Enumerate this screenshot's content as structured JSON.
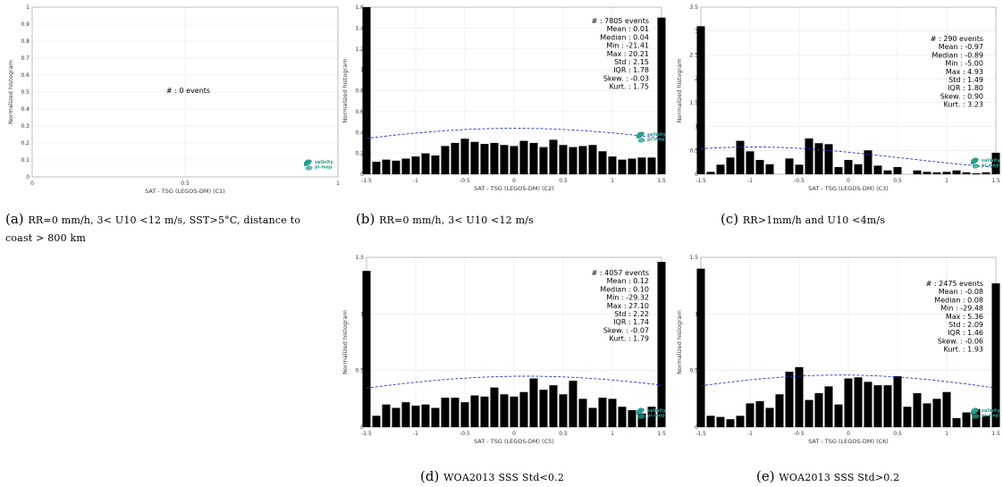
{
  "colors": {
    "bar": "#000000",
    "fit": "#2233cc",
    "grid": "#e8e8e8",
    "logo": "#2a9d8f"
  },
  "panels": [
    {
      "id": "a",
      "caption": {
        "letter": "(a)",
        "text": "RR=0 mm/h, 3< U10 <12 m/s, SST>5°C, distance to coast > 800 km"
      },
      "stats": [
        "# : 0 events"
      ],
      "logo_text": [
        "salinity",
        "pi-mep"
      ],
      "chart_data": {
        "type": "bar",
        "xlabel": "SAT - TSG (LEGOS-DM) (C1)",
        "ylabel": "Normalized histogram",
        "xlim": [
          0,
          1
        ],
        "ylim": [
          0,
          1
        ],
        "xticks": [
          "0",
          "0.5",
          "1"
        ],
        "yticks": [
          "0",
          "0.1",
          "0.2",
          "0.3",
          "0.4",
          "0.5",
          "0.6",
          "0.7",
          "0.8",
          "0.9",
          "1"
        ],
        "bins": [],
        "values": [],
        "fit": null,
        "grid": true
      }
    },
    {
      "id": "b",
      "caption": {
        "letter": "(b)",
        "text": "RR=0 mm/h, 3< U10 <12 m/s"
      },
      "stats": [
        "# : 7805 events",
        "Mean : 0.01",
        "Median : 0.04",
        "Min : -21.41",
        "Max : 20.21",
        "Std : 2.15",
        "IQR : 1.78",
        "Skew. : -0.03",
        "Kurt. : 1.75"
      ],
      "logo_text": [
        "salinity",
        "pi-mep"
      ],
      "chart_data": {
        "type": "bar",
        "xlabel": "SAT - TSG (LEGOS-DM) (C2)",
        "ylabel": "Normalized histogram",
        "xlim": [
          -1.5,
          1.5
        ],
        "ylim": [
          0,
          1.6
        ],
        "xticks": [
          "-1.5",
          "-1",
          "-0.5",
          "0",
          "0.5",
          "1",
          "1.5"
        ],
        "yticks": [
          "0",
          "0.2",
          "0.4",
          "0.6",
          "0.8",
          "1",
          "1.2",
          "1.4",
          "1.6"
        ],
        "bins": [
          -1.5,
          -1.4,
          -1.3,
          -1.2,
          -1.1,
          -1.0,
          -0.9,
          -0.8,
          -0.7,
          -0.6,
          -0.5,
          -0.4,
          -0.3,
          -0.2,
          -0.1,
          0.0,
          0.1,
          0.2,
          0.3,
          0.4,
          0.5,
          0.6,
          0.7,
          0.8,
          0.9,
          1.0,
          1.1,
          1.2,
          1.3,
          1.4,
          1.5
        ],
        "values": [
          1.6,
          0.12,
          0.14,
          0.13,
          0.15,
          0.17,
          0.2,
          0.18,
          0.27,
          0.3,
          0.34,
          0.31,
          0.29,
          0.3,
          0.28,
          0.27,
          0.32,
          0.3,
          0.26,
          0.33,
          0.28,
          0.26,
          0.27,
          0.28,
          0.22,
          0.17,
          0.14,
          0.15,
          0.16,
          0.16,
          1.5
        ],
        "fit": {
          "mean": 0.01,
          "std": 2.15,
          "peak": 0.44
        },
        "grid": true
      }
    },
    {
      "id": "c",
      "caption": {
        "letter": "(c)",
        "text": "RR>1mm/h and U10 <4m/s"
      },
      "stats": [
        "# : 290 events",
        "Mean : -0.97",
        "Median : -0.89",
        "Min : -5.00",
        "Max : 4.93",
        "Std : 1.49",
        "IQR : 1.80",
        "Skew. : 0.90",
        "Kurt. : 3.23"
      ],
      "logo_text": [
        "salinity",
        "pi-mep"
      ],
      "chart_data": {
        "type": "bar",
        "xlabel": "SAT - TSG (LEGOS-DM) (C3)",
        "ylabel": "Normalized histogram",
        "xlim": [
          -1.5,
          1.5
        ],
        "ylim": [
          0,
          3.5
        ],
        "xticks": [
          "-1.5",
          "-1",
          "-0.5",
          "0",
          "0.5",
          "1",
          "1.5"
        ],
        "yticks": [
          "0",
          "0.5",
          "1",
          "1.5",
          "2",
          "2.5",
          "3",
          "3.5"
        ],
        "bins": [
          -1.5,
          -1.4,
          -1.3,
          -1.2,
          -1.1,
          -1.0,
          -0.9,
          -0.8,
          -0.7,
          -0.6,
          -0.5,
          -0.4,
          -0.3,
          -0.2,
          -0.1,
          0.0,
          0.1,
          0.2,
          0.3,
          0.4,
          0.5,
          0.6,
          0.7,
          0.8,
          0.9,
          1.0,
          1.1,
          1.2,
          1.3,
          1.4,
          1.5
        ],
        "values": [
          3.1,
          0.05,
          0.2,
          0.35,
          0.7,
          0.48,
          0.3,
          0.21,
          0,
          0.33,
          0.2,
          0.75,
          0.65,
          0.63,
          0.15,
          0.3,
          0.21,
          0.5,
          0.18,
          0.08,
          0.15,
          0,
          0.08,
          0.05,
          0.04,
          0.05,
          0.08,
          0.04,
          0.02,
          0.04,
          0.45
        ],
        "fit": {
          "mean": -0.97,
          "std": 1.49,
          "peak": 0.57
        },
        "grid": true
      }
    },
    {
      "id": "d",
      "caption": {
        "letter": "(d)",
        "text": "WOA2013 SSS Std<0.2"
      },
      "stats": [
        "# : 4057 events",
        "Mean : 0.12",
        "Median : 0.10",
        "Min : -29.32",
        "Max : 27.10",
        "Std : 2.22",
        "IQR : 1.74",
        "Skew. : -0.07",
        "Kurt. : 1.79"
      ],
      "logo_text": [
        "salinity",
        "pi-mep"
      ],
      "chart_data": {
        "type": "bar",
        "xlabel": "SAT - TSG (LEGOS-DM) (C5)",
        "ylabel": "Normalized histogram",
        "xlim": [
          -1.5,
          1.5
        ],
        "ylim": [
          0,
          1.5
        ],
        "xticks": [
          "-1.5",
          "-1",
          "-0.5",
          "0",
          "0.5",
          "1",
          "1.5"
        ],
        "yticks": [
          "0",
          "0.5",
          "1",
          "1.5"
        ],
        "bins": [
          -1.5,
          -1.4,
          -1.3,
          -1.2,
          -1.1,
          -1.0,
          -0.9,
          -0.8,
          -0.7,
          -0.6,
          -0.5,
          -0.4,
          -0.3,
          -0.2,
          -0.1,
          0.0,
          0.1,
          0.2,
          0.3,
          0.4,
          0.5,
          0.6,
          0.7,
          0.8,
          0.9,
          1.0,
          1.1,
          1.2,
          1.3,
          1.4,
          1.5
        ],
        "values": [
          1.38,
          0.1,
          0.2,
          0.17,
          0.22,
          0.19,
          0.2,
          0.17,
          0.26,
          0.26,
          0.22,
          0.28,
          0.27,
          0.35,
          0.29,
          0.27,
          0.31,
          0.43,
          0.33,
          0.37,
          0.29,
          0.41,
          0.25,
          0.17,
          0.26,
          0.25,
          0.18,
          0.15,
          0.12,
          0.18,
          1.46
        ],
        "fit": {
          "mean": 0.12,
          "std": 2.22,
          "peak": 0.45
        },
        "grid": true
      }
    },
    {
      "id": "e",
      "caption": {
        "letter": "(e)",
        "text": "WOA2013 SSS Std>0.2"
      },
      "stats": [
        "# : 2475 events",
        "Mean : -0.08",
        "Median : 0.08",
        "Min : -29.48",
        "Max : 5.36",
        "Std : 2.09",
        "IQR : 1.46",
        "Skew. : -0.06",
        "Kurt. : 1.93"
      ],
      "logo_text": [
        "salinity",
        "pi-mep"
      ],
      "chart_data": {
        "type": "bar",
        "xlabel": "SAT - TSG (LEGOS-DM) (C6)",
        "ylabel": "Normalized histogram",
        "xlim": [
          -1.5,
          1.5
        ],
        "ylim": [
          0,
          1.5
        ],
        "xticks": [
          "-1.5",
          "-1",
          "-0.5",
          "0",
          "0.5",
          "1",
          "1.5"
        ],
        "yticks": [
          "0",
          "0.5",
          "1",
          "1.5"
        ],
        "bins": [
          -1.5,
          -1.4,
          -1.3,
          -1.2,
          -1.1,
          -1.0,
          -0.9,
          -0.8,
          -0.7,
          -0.6,
          -0.5,
          -0.4,
          -0.3,
          -0.2,
          -0.1,
          0.0,
          0.1,
          0.2,
          0.3,
          0.4,
          0.5,
          0.6,
          0.7,
          0.8,
          0.9,
          1.0,
          1.1,
          1.2,
          1.3,
          1.4,
          1.5
        ],
        "values": [
          1.4,
          0.1,
          0.09,
          0.07,
          0.1,
          0.21,
          0.23,
          0.17,
          0.29,
          0.49,
          0.53,
          0.24,
          0.3,
          0.36,
          0.2,
          0.43,
          0.44,
          0.4,
          0.37,
          0.37,
          0.45,
          0.18,
          0.3,
          0.21,
          0.25,
          0.31,
          0.08,
          0.13,
          0.16,
          0.1,
          1.27
        ],
        "fit": {
          "mean": -0.08,
          "std": 2.09,
          "peak": 0.46
        },
        "grid": true
      }
    }
  ]
}
